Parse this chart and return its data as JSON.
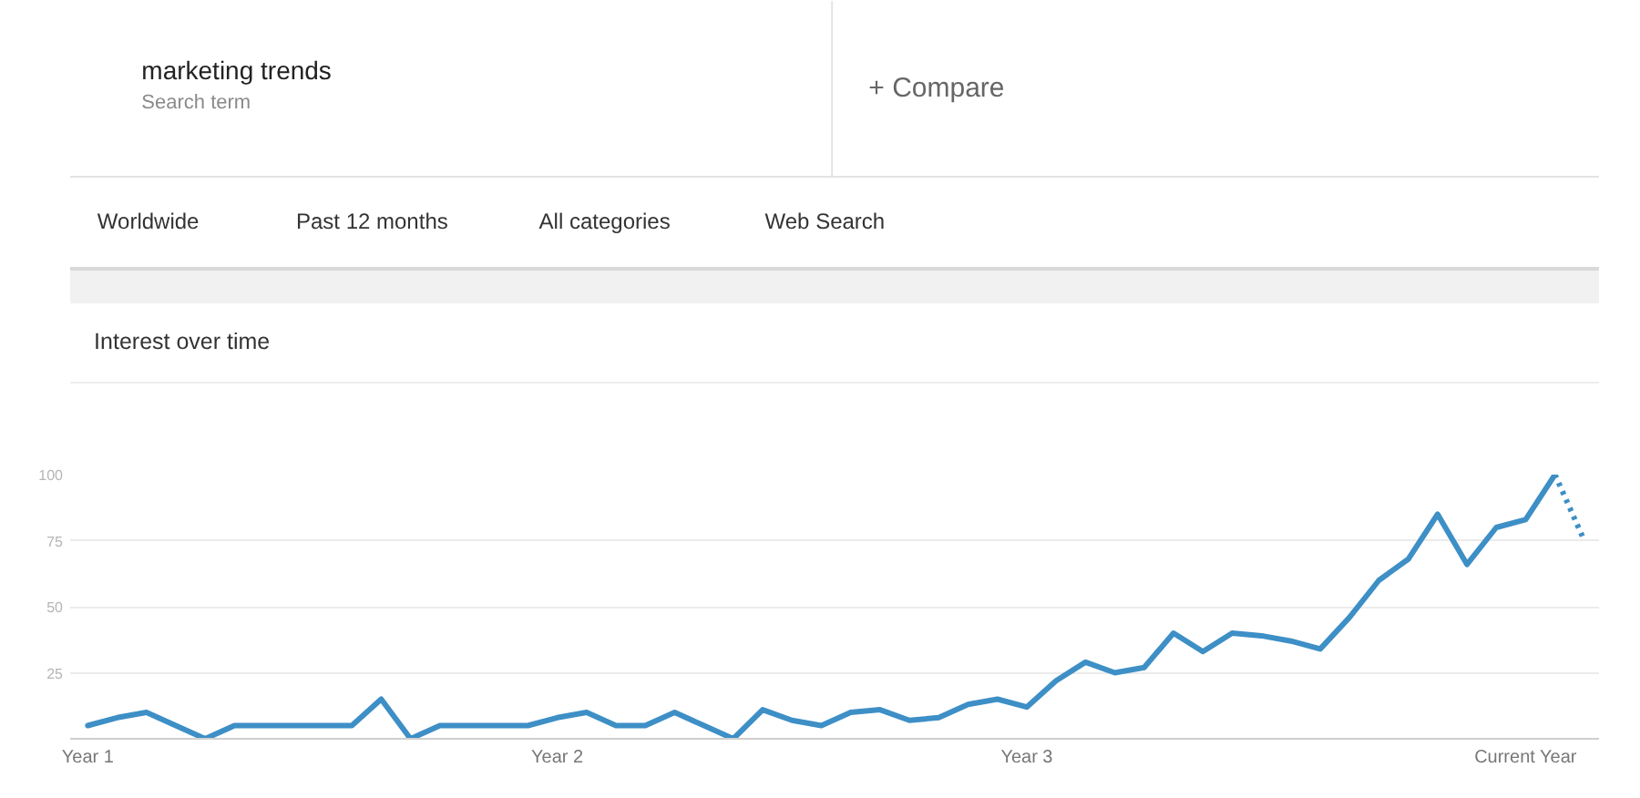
{
  "chart_data": {
    "type": "line",
    "title": "Interest over time",
    "annotations": [
      "marketing trends",
      "Search term",
      "+ Compare",
      "Worldwide",
      "Past 12 months",
      "All categories",
      "Web Search"
    ],
    "categories": [
      "Year 1",
      null,
      null,
      null,
      null,
      null,
      null,
      null,
      null,
      null,
      null,
      null,
      null,
      null,
      null,
      null,
      "Year 2",
      null,
      null,
      null,
      null,
      null,
      null,
      null,
      null,
      null,
      null,
      null,
      null,
      null,
      null,
      null,
      "Year 3",
      null,
      null,
      null,
      null,
      null,
      null,
      null,
      null,
      null,
      null,
      null,
      null,
      null,
      null,
      null,
      null,
      "Current Year",
      null,
      null
    ],
    "series": [
      {
        "color": "#3d8fc6",
        "values": [
          5,
          8,
          10,
          5,
          0,
          5,
          5,
          5,
          5,
          5,
          15,
          0,
          5,
          5,
          5,
          5,
          8,
          10,
          5,
          5,
          10,
          5,
          0,
          11,
          7,
          5,
          10,
          11,
          7,
          8,
          13,
          15,
          12,
          22,
          29,
          25,
          27,
          40,
          33,
          40,
          39,
          37,
          34,
          46,
          60,
          68,
          85,
          66,
          80,
          83,
          100,
          null
        ]
      },
      {
        "color": "#3d8fc6",
        "line_style": "dotted",
        "values": [
          null,
          null,
          null,
          null,
          null,
          null,
          null,
          null,
          null,
          null,
          null,
          null,
          null,
          null,
          null,
          null,
          null,
          null,
          null,
          null,
          null,
          null,
          null,
          null,
          null,
          null,
          null,
          null,
          null,
          null,
          null,
          null,
          null,
          null,
          null,
          null,
          null,
          null,
          null,
          null,
          null,
          null,
          null,
          null,
          null,
          null,
          null,
          null,
          null,
          null,
          100,
          75
        ]
      }
    ],
    "ylim": [
      0,
      100
    ],
    "yticks": [
      {
        "value": 0,
        "label": null
      },
      25,
      50,
      75,
      100
    ],
    "grid": "y"
  }
}
